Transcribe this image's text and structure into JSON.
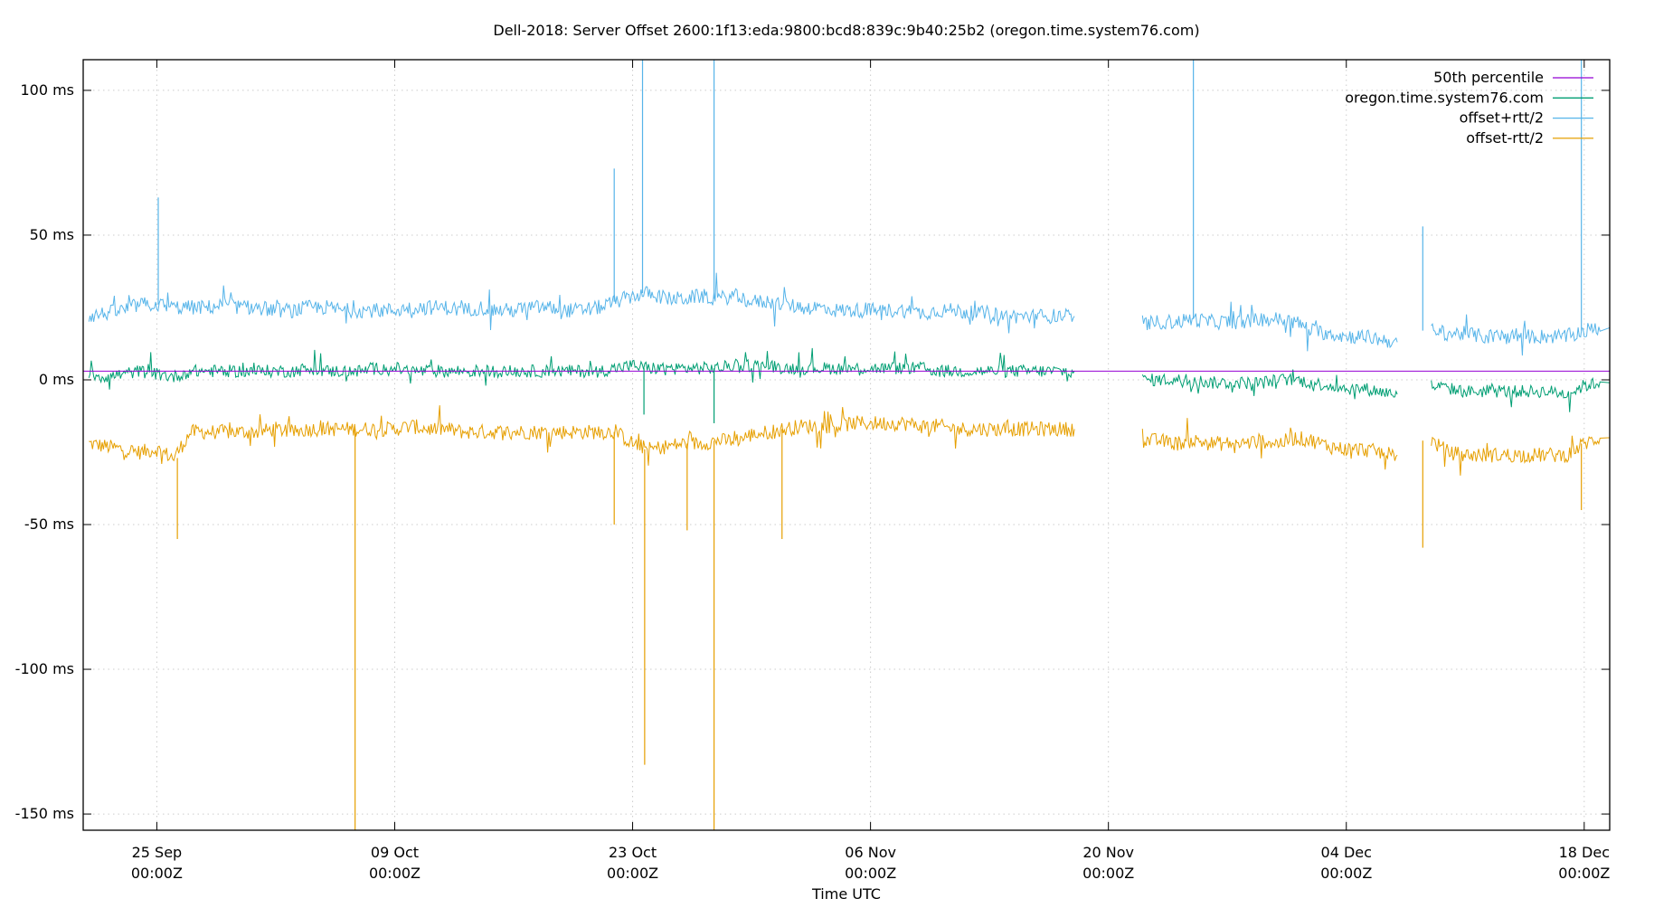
{
  "chart_data": {
    "type": "line",
    "title": "Dell-2018: Server Offset 2600:1f13:eda:9800:bcd8:839c:9b40:25b2 (oregon.time.system76.com)",
    "xlabel": "Time UTC",
    "ylabel": "",
    "ylim": [
      -155.6,
      110.6
    ],
    "xlim": [
      "09-20 16:00",
      "12-19 12:00"
    ],
    "grid": true,
    "legend_position": "top-right",
    "y_ticks": [
      {
        "value": 100,
        "label": "100 ms"
      },
      {
        "value": 50,
        "label": "50 ms"
      },
      {
        "value": 0,
        "label": "0 ms"
      },
      {
        "value": -50,
        "label": "-50 ms"
      },
      {
        "value": -100,
        "label": "-100 ms"
      },
      {
        "value": -150,
        "label": "-150 ms"
      }
    ],
    "x_ticks": [
      {
        "value": "09-25",
        "label": "25 Sep",
        "sublabel": "00:00Z"
      },
      {
        "value": "10-09",
        "label": "09 Oct",
        "sublabel": "00:00Z"
      },
      {
        "value": "10-23",
        "label": "23 Oct",
        "sublabel": "00:00Z"
      },
      {
        "value": "11-06",
        "label": "06 Nov",
        "sublabel": "00:00Z"
      },
      {
        "value": "11-20",
        "label": "20 Nov",
        "sublabel": "00:00Z"
      },
      {
        "value": "12-04",
        "label": "04 Dec",
        "sublabel": "00:00Z"
      },
      {
        "value": "12-18",
        "label": "18 Dec",
        "sublabel": "00:00Z"
      }
    ],
    "x": [
      "09-21",
      "09-22",
      "09-23",
      "09-24",
      "09-25",
      "09-26",
      "09-27",
      "09-28",
      "09-29",
      "09-30",
      "10-01",
      "10-02",
      "10-03",
      "10-04",
      "10-05",
      "10-06",
      "10-07",
      "10-08",
      "10-09",
      "10-10",
      "10-11",
      "10-12",
      "10-13",
      "10-14",
      "10-15",
      "10-16",
      "10-17",
      "10-18",
      "10-19",
      "10-20",
      "10-21",
      "10-22",
      "10-23",
      "10-24",
      "10-25",
      "10-26",
      "10-27",
      "10-28",
      "10-29",
      "10-30",
      "10-31",
      "11-01",
      "11-02",
      "11-03",
      "11-04",
      "11-05",
      "11-06",
      "11-07",
      "11-08",
      "11-09",
      "11-10",
      "11-11",
      "11-12",
      "11-13",
      "11-14",
      "11-15",
      "11-16",
      "11-17",
      "11-18",
      "11-19",
      "11-20",
      "11-21",
      "11-22",
      "11-23",
      "11-24",
      "11-25",
      "11-26",
      "11-27",
      "11-28",
      "11-29",
      "11-30",
      "12-01",
      "12-02",
      "12-03",
      "12-04",
      "12-05",
      "12-06",
      "12-07",
      "12-08",
      "12-09",
      "12-10",
      "12-11",
      "12-12",
      "12-13",
      "12-14",
      "12-15",
      "12-16",
      "12-17",
      "12-18",
      "12-19"
    ],
    "series": [
      {
        "name": "50th percentile",
        "color": "#9400d3",
        "constant": 3
      },
      {
        "name": "oregon.time.system76.com",
        "color": "#009e73",
        "values": [
          2,
          1,
          2,
          3,
          2,
          1,
          3,
          3,
          3,
          3,
          3,
          3,
          3,
          4,
          3,
          3,
          3,
          4,
          4,
          3,
          3,
          3,
          3,
          3,
          3,
          3,
          3,
          3,
          3,
          3,
          3,
          4,
          5,
          4,
          4,
          4,
          4,
          4,
          5,
          5,
          5,
          4,
          4,
          4,
          4,
          4,
          4,
          4,
          4,
          4,
          3,
          3,
          3,
          3,
          3,
          3,
          3,
          3,
          3,
          null,
          null,
          null,
          0,
          0,
          0,
          0,
          -1,
          -1,
          -1,
          -1,
          0,
          0,
          -1,
          -2,
          -3,
          -3,
          -4,
          -5,
          null,
          -2,
          -3,
          -4,
          -4,
          -4,
          -4,
          -4,
          -4,
          -5,
          -2,
          -1
        ]
      },
      {
        "name": "offset+rtt/2",
        "color": "#56b4e9",
        "values": [
          22,
          23,
          24,
          26,
          26,
          25,
          25,
          25,
          26,
          25,
          25,
          24,
          24,
          25,
          25,
          24,
          24,
          24,
          24,
          25,
          25,
          25,
          24,
          25,
          24,
          24,
          25,
          25,
          24,
          24,
          25,
          27,
          29,
          30,
          28,
          28,
          29,
          28,
          29,
          27,
          27,
          26,
          25,
          25,
          24,
          24,
          24,
          24,
          24,
          23,
          24,
          24,
          23,
          23,
          22,
          22,
          22,
          22,
          22,
          null,
          null,
          null,
          19,
          20,
          20,
          21,
          20,
          20,
          20,
          21,
          21,
          20,
          17,
          16,
          15,
          15,
          14,
          13,
          null,
          17,
          16,
          16,
          15,
          15,
          15,
          15,
          15,
          15,
          17,
          18
        ]
      },
      {
        "name": "offset-rtt/2",
        "color": "#e69f00",
        "values": [
          -22,
          -23,
          -24,
          -25,
          -24,
          -27,
          -18,
          -18,
          -18,
          -18,
          -18,
          -17,
          -18,
          -17,
          -17,
          -17,
          -17,
          -17,
          -17,
          -16,
          -17,
          -17,
          -18,
          -18,
          -18,
          -18,
          -18,
          -18,
          -18,
          -18,
          -18,
          -18,
          -22,
          -24,
          -23,
          -22,
          -22,
          -21,
          -21,
          -19,
          -18,
          -17,
          -16,
          -16,
          -16,
          -15,
          -15,
          -15,
          -15,
          -16,
          -16,
          -17,
          -17,
          -17,
          -17,
          -17,
          -17,
          -17,
          -17,
          null,
          null,
          null,
          -21,
          -21,
          -22,
          -21,
          -22,
          -22,
          -22,
          -21,
          -22,
          -20,
          -21,
          -23,
          -24,
          -24,
          -25,
          -26,
          null,
          -21,
          -25,
          -26,
          -26,
          -26,
          -26,
          -26,
          -26,
          -26,
          -22,
          -20
        ]
      }
    ],
    "spikes": [
      {
        "series": 2,
        "x": "09-25 02:00",
        "value": 63
      },
      {
        "series": 2,
        "x": "10-21 22:00",
        "value": 73
      },
      {
        "series": 2,
        "x": "10-23 14:00",
        "value": 111
      },
      {
        "series": 2,
        "x": "10-27 19:00",
        "value": 111
      },
      {
        "series": 2,
        "x": "11-25 00:00",
        "value": 111
      },
      {
        "series": 2,
        "x": "12-08 12:00",
        "value": 53
      },
      {
        "series": 2,
        "x": "12-17 20:00",
        "value": 111
      },
      {
        "series": 1,
        "x": "10-23 16:00",
        "value": -12
      },
      {
        "series": 1,
        "x": "10-27 19:00",
        "value": -15
      },
      {
        "series": 3,
        "x": "09-26 05:00",
        "value": -55
      },
      {
        "series": 3,
        "x": "10-06 16:00",
        "value": -156
      },
      {
        "series": 3,
        "x": "10-21 22:00",
        "value": -50
      },
      {
        "series": 3,
        "x": "10-23 17:00",
        "value": -133
      },
      {
        "series": 3,
        "x": "10-26 05:00",
        "value": -52
      },
      {
        "series": 3,
        "x": "10-27 19:00",
        "value": -156
      },
      {
        "series": 3,
        "x": "10-31 19:00",
        "value": -55
      },
      {
        "series": 3,
        "x": "12-08 12:00",
        "value": -58
      },
      {
        "series": 3,
        "x": "12-17 20:00",
        "value": -45
      }
    ]
  }
}
